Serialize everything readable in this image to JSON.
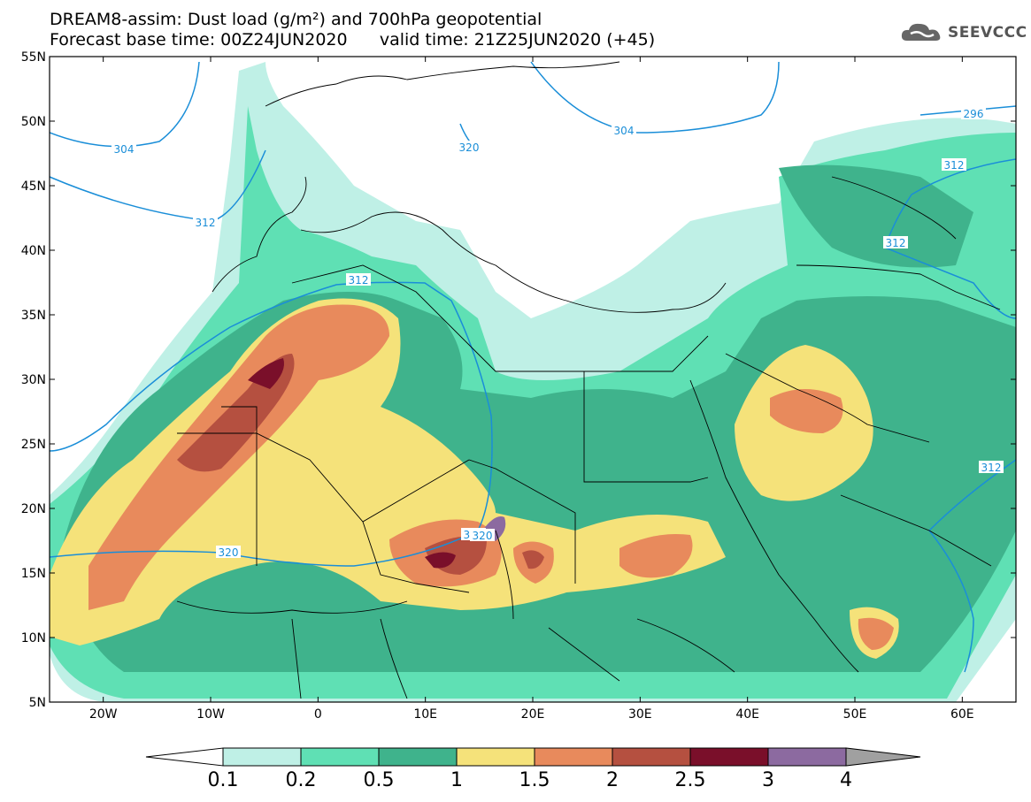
{
  "title": {
    "line1": "DREAM8-assim: Dust load (g/m²) and 700hPa geopotential",
    "line2": "Forecast base time: 00Z24JUN2020      valid time: 21Z25JUN2020 (+45)"
  },
  "logo": {
    "text": "SEEVCCC",
    "icon": "cloud-icon"
  },
  "map": {
    "region": "North Africa, Europe and Middle East",
    "lat_ticks": [
      "55N",
      "50N",
      "45N",
      "40N",
      "35N",
      "30N",
      "25N",
      "20N",
      "15N",
      "10N",
      "5N"
    ],
    "lon_ticks": [
      "20W",
      "10W",
      "0",
      "10E",
      "20E",
      "30E",
      "40E",
      "50E",
      "60E"
    ],
    "lat_range": [
      5,
      55
    ],
    "lon_range": [
      -25,
      65
    ],
    "contour_labels": [
      "304",
      "312",
      "320",
      "312",
      "320",
      "304",
      "312",
      "296",
      "312",
      "320",
      "320",
      "312"
    ]
  },
  "colorbar": {
    "levels": [
      "0.1",
      "0.2",
      "0.5",
      "1",
      "1.5",
      "2",
      "2.5",
      "3",
      "4"
    ],
    "colors": [
      "#bff0e6",
      "#5fe0b4",
      "#3fb38c",
      "#f5e27a",
      "#e88a5c",
      "#b55040",
      "#7a0f2a",
      "#8c6aa0",
      "#a0a0a0"
    ],
    "under_color": "#ffffff"
  }
}
